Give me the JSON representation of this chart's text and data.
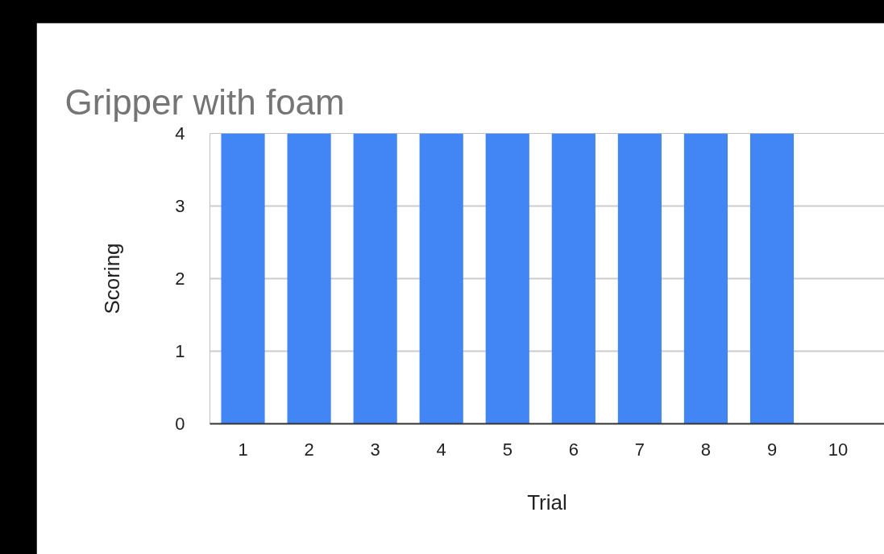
{
  "chart_data": {
    "type": "bar",
    "title": "Gripper with foam",
    "xlabel": "Trial",
    "ylabel": "Scoring",
    "categories": [
      "1",
      "2",
      "3",
      "4",
      "5",
      "6",
      "7",
      "8",
      "9",
      "10"
    ],
    "values": [
      4,
      4,
      4,
      4,
      4,
      4,
      4,
      4,
      4,
      0
    ],
    "color": "#4285f4",
    "ylim": [
      0,
      4
    ],
    "yticks": [
      0,
      1,
      2,
      3,
      4
    ],
    "grid": "y"
  }
}
